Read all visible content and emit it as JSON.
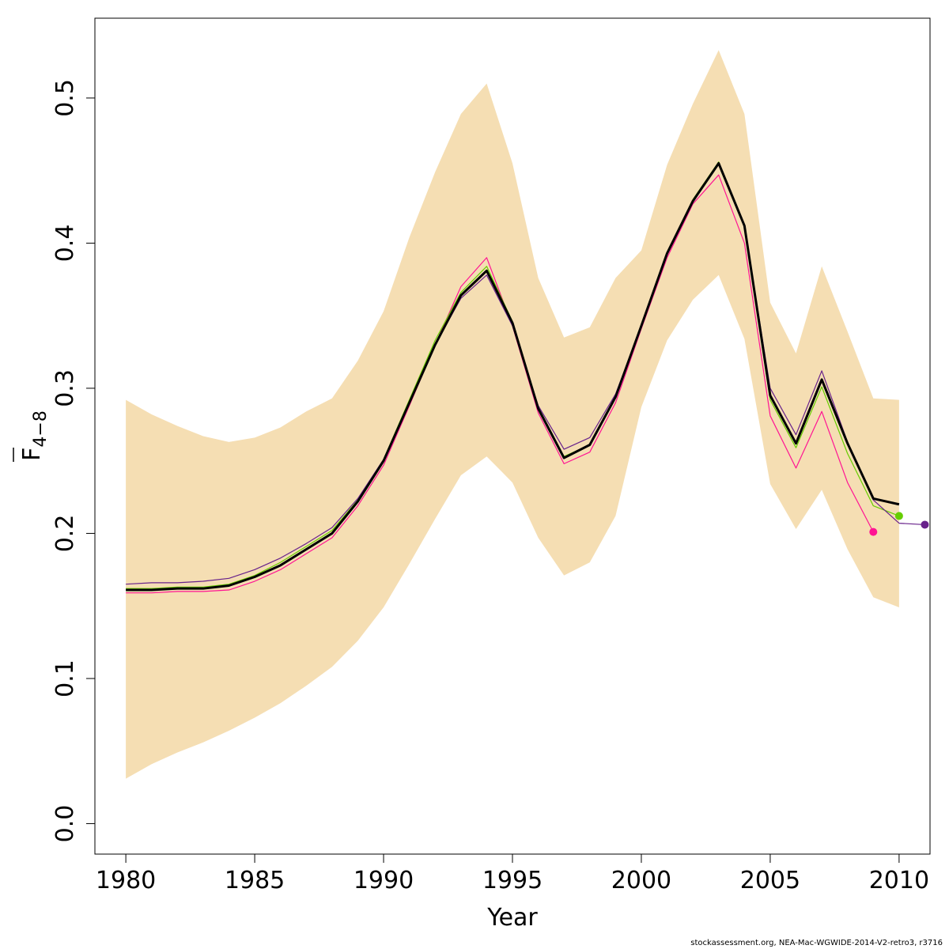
{
  "chart_data": {
    "type": "line",
    "xlabel": "Year",
    "ylabel": "F",
    "ylabel_subscript": "4−8",
    "xlim": [
      1978.8,
      2011.2
    ],
    "ylim": [
      -0.021,
      0.555
    ],
    "x_ticks": [
      1980,
      1985,
      1990,
      1995,
      2000,
      2005,
      2010
    ],
    "y_ticks": [
      0.0,
      0.1,
      0.2,
      0.3,
      0.4,
      0.5
    ],
    "x_tick_labels": [
      "1980",
      "1985",
      "1990",
      "1995",
      "2000",
      "2005",
      "2010"
    ],
    "y_tick_labels": [
      "0.0",
      "0.1",
      "0.2",
      "0.3",
      "0.4",
      "0.5"
    ],
    "grid": false,
    "legend": "none",
    "confidence_band": {
      "color": "#f5deb3",
      "x": [
        1980,
        1981,
        1982,
        1983,
        1984,
        1985,
        1986,
        1987,
        1988,
        1989,
        1990,
        1991,
        1992,
        1993,
        1994,
        1995,
        1996,
        1997,
        1998,
        1999,
        2000,
        2001,
        2002,
        2003,
        2004,
        2005,
        2006,
        2007,
        2008,
        2009,
        2010
      ],
      "lower": [
        0.031,
        0.041,
        0.049,
        0.056,
        0.064,
        0.073,
        0.083,
        0.095,
        0.108,
        0.126,
        0.149,
        0.179,
        0.21,
        0.24,
        0.253,
        0.235,
        0.197,
        0.171,
        0.18,
        0.212,
        0.287,
        0.333,
        0.361,
        0.378,
        0.334,
        0.234,
        0.203,
        0.23,
        0.189,
        0.156,
        0.149
      ],
      "upper": [
        0.292,
        0.282,
        0.274,
        0.267,
        0.263,
        0.266,
        0.273,
        0.284,
        0.293,
        0.319,
        0.353,
        0.404,
        0.449,
        0.489,
        0.51,
        0.455,
        0.376,
        0.335,
        0.342,
        0.376,
        0.395,
        0.454,
        0.496,
        0.533,
        0.489,
        0.359,
        0.324,
        0.384,
        0.339,
        0.293,
        0.292
      ]
    },
    "series": [
      {
        "color": "#ff1493",
        "x": [
          1980,
          1981,
          1982,
          1983,
          1984,
          1985,
          1986,
          1987,
          1988,
          1989,
          1990,
          1991,
          1992,
          1993,
          1994,
          1995,
          1996,
          1997,
          1998,
          1999,
          2000,
          2001,
          2002,
          2003,
          2004,
          2005,
          2006,
          2007,
          2008,
          2009
        ],
        "values": [
          0.159,
          0.159,
          0.16,
          0.16,
          0.161,
          0.167,
          0.175,
          0.186,
          0.197,
          0.219,
          0.247,
          0.288,
          0.33,
          0.37,
          0.39,
          0.343,
          0.283,
          0.248,
          0.256,
          0.29,
          0.341,
          0.39,
          0.427,
          0.447,
          0.4,
          0.281,
          0.245,
          0.284,
          0.235,
          0.201
        ],
        "endpoint": {
          "x": 2009,
          "y": 0.201
        }
      },
      {
        "color": "#66cd00",
        "x": [
          1980,
          1981,
          1982,
          1983,
          1984,
          1985,
          1986,
          1987,
          1988,
          1989,
          1990,
          1991,
          1992,
          1993,
          1994,
          1995,
          1996,
          1997,
          1998,
          1999,
          2000,
          2001,
          2002,
          2003,
          2004,
          2005,
          2006,
          2007,
          2008,
          2009,
          2010
        ],
        "values": [
          0.162,
          0.162,
          0.163,
          0.163,
          0.165,
          0.171,
          0.18,
          0.191,
          0.202,
          0.223,
          0.251,
          0.292,
          0.333,
          0.366,
          0.384,
          0.346,
          0.287,
          0.253,
          0.261,
          0.295,
          0.343,
          0.393,
          0.43,
          0.456,
          0.411,
          0.292,
          0.259,
          0.301,
          0.255,
          0.219,
          0.212
        ],
        "endpoint": {
          "x": 2010,
          "y": 0.212
        }
      },
      {
        "color": "#68228b",
        "x": [
          1980,
          1981,
          1982,
          1983,
          1984,
          1985,
          1986,
          1987,
          1988,
          1989,
          1990,
          1991,
          1992,
          1993,
          1994,
          1995,
          1996,
          1997,
          1998,
          1999,
          2000,
          2001,
          2002,
          2003,
          2004,
          2005,
          2006,
          2007,
          2008,
          2009,
          2010,
          2011
        ],
        "values": [
          0.165,
          0.166,
          0.166,
          0.167,
          0.169,
          0.175,
          0.183,
          0.193,
          0.204,
          0.224,
          0.251,
          0.29,
          0.33,
          0.362,
          0.378,
          0.343,
          0.288,
          0.258,
          0.266,
          0.296,
          0.343,
          0.392,
          0.428,
          0.455,
          0.412,
          0.3,
          0.268,
          0.312,
          0.263,
          0.223,
          0.207,
          0.206
        ],
        "endpoint": {
          "x": 2011,
          "y": 0.206
        }
      },
      {
        "color": "#000000",
        "x": [
          1980,
          1981,
          1982,
          1983,
          1984,
          1985,
          1986,
          1987,
          1988,
          1989,
          1990,
          1991,
          1992,
          1993,
          1994,
          1995,
          1996,
          1997,
          1998,
          1999,
          2000,
          2001,
          2002,
          2003,
          2004,
          2005,
          2006,
          2007,
          2008,
          2009,
          2010
        ],
        "values": [
          0.161,
          0.161,
          0.162,
          0.162,
          0.164,
          0.17,
          0.178,
          0.189,
          0.2,
          0.222,
          0.25,
          0.29,
          0.33,
          0.364,
          0.381,
          0.345,
          0.286,
          0.252,
          0.261,
          0.294,
          0.343,
          0.393,
          0.429,
          0.455,
          0.412,
          0.295,
          0.262,
          0.306,
          0.262,
          0.224,
          0.22
        ]
      }
    ]
  },
  "footer": {
    "text": "stockassessment.org, NEA-Mac-WGWIDE-2014-V2-retro3, r3716"
  }
}
